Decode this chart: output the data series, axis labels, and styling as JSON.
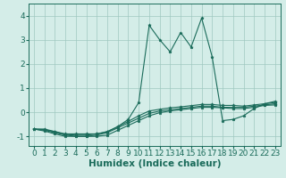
{
  "xlabel": "Humidex (Indice chaleur)",
  "x": [
    0,
    1,
    2,
    3,
    4,
    5,
    6,
    7,
    8,
    9,
    10,
    11,
    12,
    13,
    14,
    15,
    16,
    17,
    18,
    19,
    20,
    21,
    22,
    23
  ],
  "line1": [
    -0.7,
    -0.7,
    -0.8,
    -0.9,
    -0.9,
    -0.9,
    -0.9,
    -0.8,
    -0.6,
    -0.3,
    0.4,
    3.6,
    3.0,
    2.5,
    3.3,
    2.7,
    3.9,
    2.3,
    -0.35,
    -0.3,
    -0.15,
    0.15,
    0.35,
    0.45
  ],
  "line2": [
    -0.7,
    -0.75,
    -0.85,
    -0.95,
    -1.0,
    -1.0,
    -0.95,
    -0.85,
    -0.65,
    -0.45,
    -0.25,
    -0.05,
    0.05,
    0.1,
    0.15,
    0.2,
    0.25,
    0.25,
    0.2,
    0.2,
    0.2,
    0.25,
    0.3,
    0.35
  ],
  "line3": [
    -0.7,
    -0.72,
    -0.82,
    -0.92,
    -0.95,
    -0.95,
    -0.9,
    -0.82,
    -0.6,
    -0.38,
    -0.15,
    0.05,
    0.12,
    0.18,
    0.22,
    0.27,
    0.32,
    0.32,
    0.28,
    0.28,
    0.25,
    0.3,
    0.35,
    0.4
  ],
  "line4": [
    -0.7,
    -0.78,
    -0.9,
    -1.0,
    -1.0,
    -1.0,
    -1.0,
    -0.95,
    -0.75,
    -0.55,
    -0.35,
    -0.15,
    -0.02,
    0.05,
    0.1,
    0.15,
    0.2,
    0.2,
    0.18,
    0.15,
    0.15,
    0.2,
    0.28,
    0.3
  ],
  "color": "#1a6b5a",
  "bg_color": "#d4ede8",
  "grid_color": "#9fc8c0",
  "ylim": [
    -1.4,
    4.5
  ],
  "yticks": [
    -1,
    0,
    1,
    2,
    3,
    4
  ],
  "xticks": [
    0,
    1,
    2,
    3,
    4,
    5,
    6,
    7,
    8,
    9,
    10,
    11,
    12,
    13,
    14,
    15,
    16,
    17,
    18,
    19,
    20,
    21,
    22,
    23
  ],
  "xlabel_fontsize": 7.5,
  "tick_fontsize": 6.5
}
